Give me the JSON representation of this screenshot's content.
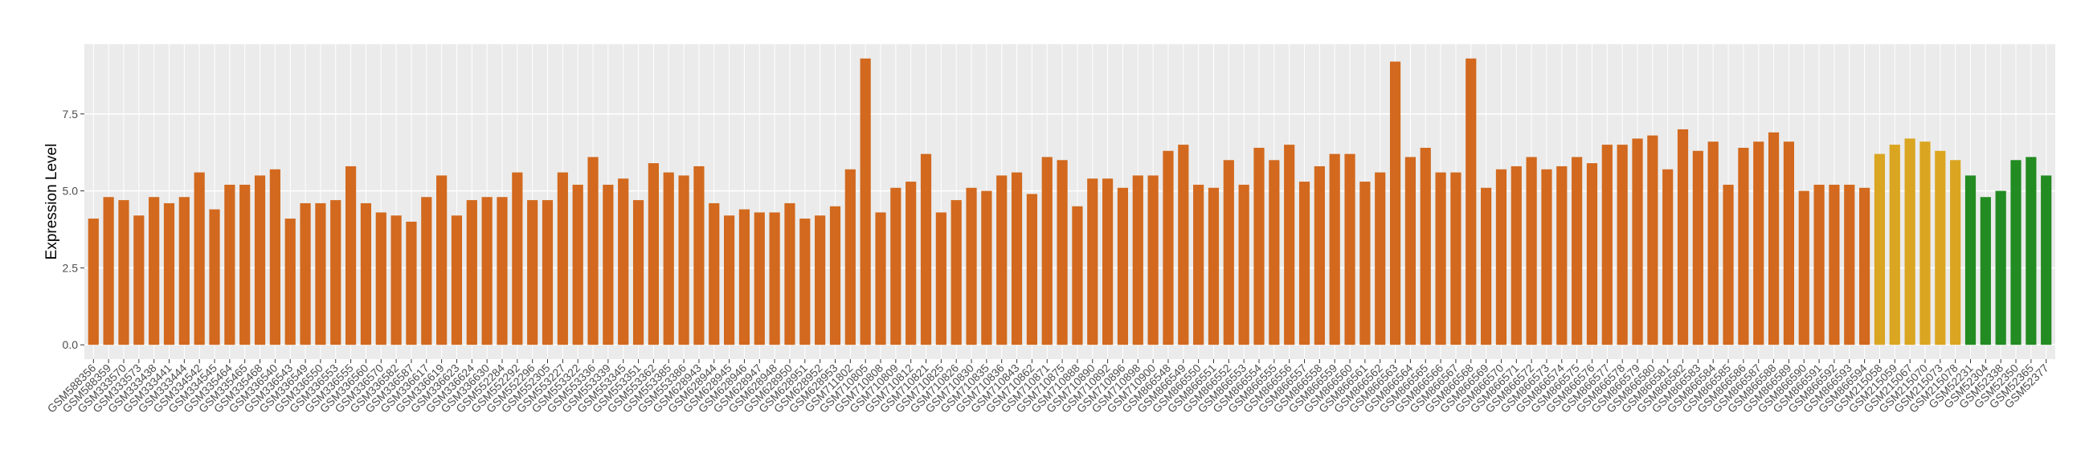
{
  "chart_data": {
    "type": "bar",
    "y_label": "Expression Level",
    "categories": [
      "GSM588356",
      "GSM588359",
      "GSM333570",
      "GSM333573",
      "GSM333438",
      "GSM333441",
      "GSM333444",
      "GSM334542",
      "GSM334545",
      "GSM335464",
      "GSM335465",
      "GSM335468",
      "GSM336540",
      "GSM336543",
      "GSM336549",
      "GSM336550",
      "GSM336553",
      "GSM336555",
      "GSM336560",
      "GSM336570",
      "GSM336582",
      "GSM336587",
      "GSM336617",
      "GSM336619",
      "GSM336623",
      "GSM336624",
      "GSM336630",
      "GSM552284",
      "GSM552292",
      "GSM552296",
      "GSM552305",
      "GSM553227",
      "GSM553322",
      "GSM553336",
      "GSM553339",
      "GSM553345",
      "GSM553351",
      "GSM553362",
      "GSM553385",
      "GSM553386",
      "GSM628943",
      "GSM628944",
      "GSM628945",
      "GSM628946",
      "GSM628947",
      "GSM628948",
      "GSM628950",
      "GSM628951",
      "GSM628952",
      "GSM628953",
      "GSM711802",
      "GSM710805",
      "GSM710808",
      "GSM710809",
      "GSM710812",
      "GSM710821",
      "GSM710825",
      "GSM710826",
      "GSM710830",
      "GSM710835",
      "GSM710836",
      "GSM710843",
      "GSM710862",
      "GSM710871",
      "GSM710875",
      "GSM710888",
      "GSM710890",
      "GSM710892",
      "GSM710896",
      "GSM710898",
      "GSM710900",
      "GSM866548",
      "GSM866549",
      "GSM866550",
      "GSM866551",
      "GSM866552",
      "GSM866553",
      "GSM866554",
      "GSM866555",
      "GSM866556",
      "GSM866557",
      "GSM866558",
      "GSM866559",
      "GSM866560",
      "GSM866561",
      "GSM866562",
      "GSM866563",
      "GSM866564",
      "GSM866565",
      "GSM866566",
      "GSM866567",
      "GSM866568",
      "GSM866569",
      "GSM866570",
      "GSM866571",
      "GSM866572",
      "GSM866573",
      "GSM866574",
      "GSM866575",
      "GSM866576",
      "GSM866577",
      "GSM866578",
      "GSM866579",
      "GSM866580",
      "GSM866581",
      "GSM866582",
      "GSM866583",
      "GSM866584",
      "GSM866585",
      "GSM866586",
      "GSM866587",
      "GSM866588",
      "GSM866589",
      "GSM866590",
      "GSM866591",
      "GSM866592",
      "GSM866593",
      "GSM866594",
      "GSM215058",
      "GSM215059",
      "GSM215067",
      "GSM215070",
      "GSM215073",
      "GSM215078",
      "GSM52231",
      "GSM52304",
      "GSM52338",
      "GSM52350",
      "GSM52365",
      "GSM52377"
    ],
    "values": [
      4.1,
      4.8,
      4.7,
      4.2,
      4.8,
      4.6,
      4.8,
      5.6,
      4.4,
      5.2,
      5.2,
      5.5,
      5.7,
      4.1,
      4.6,
      4.6,
      4.7,
      5.8,
      4.6,
      4.3,
      4.2,
      4.0,
      4.8,
      5.5,
      4.2,
      4.7,
      4.8,
      4.8,
      5.6,
      4.7,
      4.7,
      5.6,
      5.2,
      6.1,
      5.2,
      5.4,
      4.7,
      5.9,
      5.6,
      5.5,
      5.8,
      4.6,
      4.2,
      4.4,
      4.3,
      4.3,
      4.6,
      4.1,
      4.2,
      4.5,
      5.7,
      9.3,
      4.3,
      5.1,
      5.3,
      6.2,
      4.3,
      4.7,
      5.1,
      5.0,
      5.5,
      5.6,
      4.9,
      6.1,
      6.0,
      4.5,
      5.4,
      5.4,
      5.1,
      5.5,
      5.5,
      6.3,
      6.5,
      5.2,
      5.1,
      6.0,
      5.2,
      6.4,
      6.0,
      6.5,
      5.3,
      5.8,
      6.2,
      6.2,
      5.3,
      5.6,
      9.2,
      6.1,
      6.4,
      5.6,
      5.6,
      9.3,
      5.1,
      5.7,
      5.8,
      6.1,
      5.7,
      5.8,
      6.1,
      5.9,
      6.5,
      6.5,
      6.7,
      6.8,
      5.7,
      7.0,
      6.3,
      6.6,
      5.2,
      6.4,
      6.6,
      6.9,
      6.6,
      5.0,
      5.2,
      5.2,
      5.2,
      5.1,
      6.2,
      6.5,
      6.7,
      6.6,
      6.3,
      6.0,
      5.5,
      4.8,
      5.0,
      6.0,
      6.1,
      5.5
    ],
    "colors": [
      "#d2691e",
      "#d2691e",
      "#d2691e",
      "#d2691e",
      "#d2691e",
      "#d2691e",
      "#d2691e",
      "#d2691e",
      "#d2691e",
      "#d2691e",
      "#d2691e",
      "#d2691e",
      "#d2691e",
      "#d2691e",
      "#d2691e",
      "#d2691e",
      "#d2691e",
      "#d2691e",
      "#d2691e",
      "#d2691e",
      "#d2691e",
      "#d2691e",
      "#d2691e",
      "#d2691e",
      "#d2691e",
      "#d2691e",
      "#d2691e",
      "#d2691e",
      "#d2691e",
      "#d2691e",
      "#d2691e",
      "#d2691e",
      "#d2691e",
      "#d2691e",
      "#d2691e",
      "#d2691e",
      "#d2691e",
      "#d2691e",
      "#d2691e",
      "#d2691e",
      "#d2691e",
      "#d2691e",
      "#d2691e",
      "#d2691e",
      "#d2691e",
      "#d2691e",
      "#d2691e",
      "#d2691e",
      "#d2691e",
      "#d2691e",
      "#d2691e",
      "#d2691e",
      "#d2691e",
      "#d2691e",
      "#d2691e",
      "#d2691e",
      "#d2691e",
      "#d2691e",
      "#d2691e",
      "#d2691e",
      "#d2691e",
      "#d2691e",
      "#d2691e",
      "#d2691e",
      "#d2691e",
      "#d2691e",
      "#d2691e",
      "#d2691e",
      "#d2691e",
      "#d2691e",
      "#d2691e",
      "#d2691e",
      "#d2691e",
      "#d2691e",
      "#d2691e",
      "#d2691e",
      "#d2691e",
      "#d2691e",
      "#d2691e",
      "#d2691e",
      "#d2691e",
      "#d2691e",
      "#d2691e",
      "#d2691e",
      "#d2691e",
      "#d2691e",
      "#d2691e",
      "#d2691e",
      "#d2691e",
      "#d2691e",
      "#d2691e",
      "#d2691e",
      "#d2691e",
      "#d2691e",
      "#d2691e",
      "#d2691e",
      "#d2691e",
      "#d2691e",
      "#d2691e",
      "#d2691e",
      "#d2691e",
      "#d2691e",
      "#d2691e",
      "#d2691e",
      "#d2691e",
      "#d2691e",
      "#d2691e",
      "#d2691e",
      "#d2691e",
      "#d2691e",
      "#d2691e",
      "#d2691e",
      "#d2691e",
      "#d2691e",
      "#d2691e",
      "#d2691e",
      "#d2691e",
      "#d2691e",
      "#daa520",
      "#daa520",
      "#daa520",
      "#daa520",
      "#daa520",
      "#daa520",
      "#228b22",
      "#228b22",
      "#228b22",
      "#228b22",
      "#228b22",
      "#228b22"
    ],
    "ylim": [
      -0.465,
      9.765
    ],
    "yticks": [
      {
        "value": 0,
        "label": "0.0"
      },
      2.5,
      {
        "value": 5,
        "label": "5.0"
      },
      7.5
    ],
    "grid": true
  }
}
